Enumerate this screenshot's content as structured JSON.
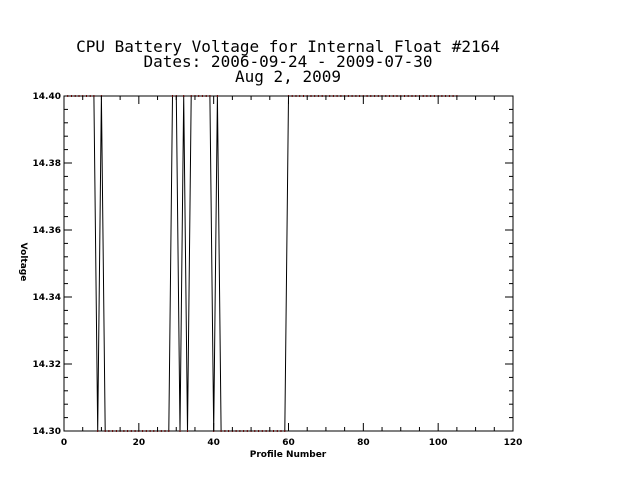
{
  "chart_data": {
    "type": "line",
    "title_lines": [
      "CPU Battery Voltage for Internal Float #2164",
      "Dates:  2006-09-24 -  2009-07-30",
      "Aug  2, 2009"
    ],
    "xlabel": "Profile Number",
    "ylabel": "Voltage",
    "xlim": [
      0,
      120
    ],
    "ylim": [
      14.3,
      14.4
    ],
    "x_ticks": [
      0,
      20,
      40,
      60,
      80,
      100,
      120
    ],
    "y_ticks": [
      14.3,
      14.32,
      14.34,
      14.36,
      14.38,
      14.4
    ],
    "x_tick_labels": [
      "0",
      "20",
      "40",
      "60",
      "80",
      "100",
      "120"
    ],
    "y_tick_labels": [
      "14.30",
      "14.32",
      "14.34",
      "14.36",
      "14.38",
      "14.40"
    ],
    "grid": false,
    "series": [
      {
        "line_color": "#000000",
        "marker_color": "#cc0000",
        "x": [
          1,
          2,
          3,
          4,
          5,
          6,
          7,
          8,
          9,
          10,
          11,
          12,
          13,
          14,
          15,
          16,
          17,
          18,
          19,
          20,
          21,
          22,
          23,
          24,
          25,
          26,
          27,
          28,
          29,
          30,
          31,
          32,
          33,
          34,
          35,
          36,
          37,
          38,
          39,
          40,
          41,
          42,
          43,
          44,
          45,
          46,
          47,
          48,
          49,
          50,
          51,
          52,
          53,
          54,
          55,
          56,
          57,
          58,
          59,
          60,
          61,
          62,
          63,
          64,
          65,
          66,
          67,
          68,
          69,
          70,
          71,
          72,
          73,
          74,
          75,
          76,
          77,
          78,
          79,
          80,
          81,
          82,
          83,
          84,
          85,
          86,
          87,
          88,
          89,
          90,
          91,
          92,
          93,
          94,
          95,
          96,
          97,
          98,
          99,
          100,
          101,
          102,
          103,
          104,
          105
        ],
        "y": [
          14.4,
          14.4,
          14.4,
          14.4,
          14.4,
          14.4,
          14.4,
          14.4,
          14.3,
          14.4,
          14.3,
          14.3,
          14.3,
          14.3,
          14.3,
          14.3,
          14.3,
          14.3,
          14.3,
          14.3,
          14.3,
          14.3,
          14.3,
          14.3,
          14.3,
          14.3,
          14.3,
          14.3,
          14.4,
          14.4,
          14.3,
          14.4,
          14.3,
          14.4,
          14.4,
          14.4,
          14.4,
          14.4,
          14.4,
          14.3,
          14.4,
          14.3,
          14.3,
          14.3,
          14.3,
          14.3,
          14.3,
          14.3,
          14.3,
          14.3,
          14.3,
          14.3,
          14.3,
          14.3,
          14.3,
          14.3,
          14.3,
          14.3,
          14.3,
          14.4,
          14.4,
          14.4,
          14.4,
          14.4,
          14.4,
          14.4,
          14.4,
          14.4,
          14.4,
          14.4,
          14.4,
          14.4,
          14.4,
          14.4,
          14.4,
          14.4,
          14.4,
          14.4,
          14.4,
          14.4,
          14.4,
          14.4,
          14.4,
          14.4,
          14.4,
          14.4,
          14.4,
          14.4,
          14.4,
          14.4,
          14.4,
          14.4,
          14.4,
          14.4,
          14.4,
          14.4,
          14.4,
          14.4,
          14.4,
          14.4,
          14.4,
          14.4,
          14.4,
          14.4,
          14.4
        ]
      }
    ]
  }
}
